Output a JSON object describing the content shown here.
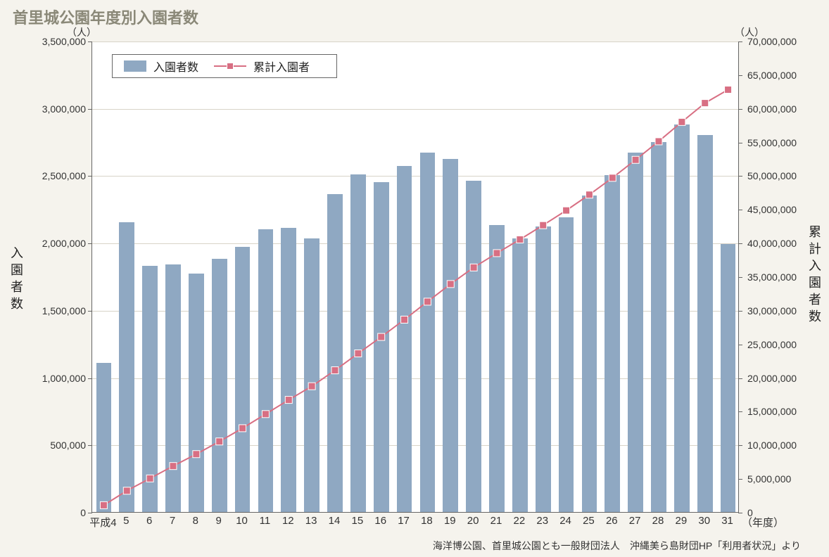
{
  "title": "首里城公園年度別入園者数",
  "chart": {
    "type": "bar+line",
    "background_color": "#f5f3ed",
    "plot_background": "#ffffff",
    "grid_color": "#d8d4c8",
    "axis_color": "#666666",
    "bar_color": "#8fa8c2",
    "line_color": "#d86f83",
    "marker_color": "#d86f83",
    "marker_border": "#ffffff",
    "bar_width_ratio": 0.66,
    "title_fontsize": 22,
    "label_fontsize": 14,
    "y_left": {
      "unit": "（人）",
      "title": "入園者数",
      "min": 0,
      "max": 3500000,
      "ticks": [
        0,
        500000,
        1000000,
        1500000,
        2000000,
        2500000,
        3000000,
        3500000
      ],
      "tick_labels": [
        "0",
        "500,000",
        "1,000,000",
        "1,500,000",
        "2,000,000",
        "2,500,000",
        "3,000,000",
        "3,500,000"
      ]
    },
    "y_right": {
      "unit": "（人）",
      "title": "累計入園者数",
      "min": 0,
      "max": 70000000,
      "ticks": [
        0,
        5000000,
        10000000,
        15000000,
        20000000,
        25000000,
        30000000,
        35000000,
        40000000,
        45000000,
        50000000,
        55000000,
        60000000,
        65000000,
        70000000
      ],
      "tick_labels": [
        "0",
        "5,000,000",
        "10,000,000",
        "15,000,000",
        "20,000,000",
        "25,000,000",
        "30,000,000",
        "35,000,000",
        "40,000,000",
        "45,000,000",
        "50,000,000",
        "55,000,000",
        "60,000,000",
        "65,000,000",
        "70,000,000"
      ]
    },
    "categories": [
      "平成4",
      "5",
      "6",
      "7",
      "8",
      "9",
      "10",
      "11",
      "12",
      "13",
      "14",
      "15",
      "16",
      "17",
      "18",
      "19",
      "20",
      "21",
      "22",
      "23",
      "24",
      "25",
      "26",
      "27",
      "28",
      "29",
      "30",
      "31"
    ],
    "x_unit": "（年度）",
    "bars": [
      1110000,
      2150000,
      1830000,
      1840000,
      1770000,
      1880000,
      1970000,
      2100000,
      2110000,
      2030000,
      2360000,
      2510000,
      2450000,
      2570000,
      2670000,
      2620000,
      2460000,
      2130000,
      2030000,
      2120000,
      2190000,
      2350000,
      2500000,
      2670000,
      2750000,
      2880000,
      2800000,
      1990000
    ],
    "line_cumulative": [
      1110000,
      3260000,
      5090000,
      6930000,
      8700000,
      10580000,
      12550000,
      14650000,
      16760000,
      18790000,
      21150000,
      23660000,
      26110000,
      28680000,
      31350000,
      33970000,
      36430000,
      38560000,
      40590000,
      42710000,
      44900000,
      47250000,
      49750000,
      52420000,
      55170000,
      58050000,
      60850000,
      62840000
    ]
  },
  "legend": {
    "bar_label": "入園者数",
    "line_label": "累計入園者"
  },
  "source": "海洋博公園、首里城公園とも一般財団法人　沖縄美ら島財団HP「利用者状況」より"
}
